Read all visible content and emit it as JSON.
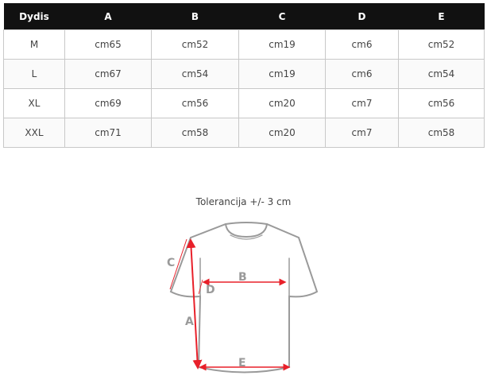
{
  "table": {
    "headers": [
      "Dydis",
      "A",
      "B",
      "C",
      "D",
      "E"
    ],
    "rows": [
      [
        "M",
        "cm65",
        "cm52",
        "cm19",
        "cm6",
        "cm52"
      ],
      [
        "L",
        "cm67",
        "cm54",
        "cm19",
        "cm6",
        "cm54"
      ],
      [
        "XL",
        "cm69",
        "cm56",
        "cm20",
        "cm7",
        "cm56"
      ],
      [
        "XXL",
        "cm71",
        "cm58",
        "cm20",
        "cm7",
        "cm58"
      ]
    ]
  },
  "diagram": {
    "tolerance": "Tolerancija +/- 3 cm",
    "labels": {
      "a": "A",
      "b": "B",
      "c": "C",
      "d": "D",
      "e": "E"
    },
    "outline_color": "#9a9a9a",
    "arrow_color": "#e8202a"
  }
}
